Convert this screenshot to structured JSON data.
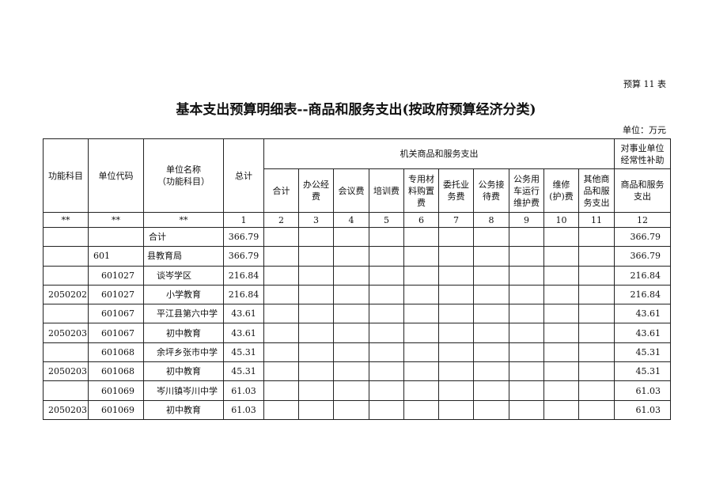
{
  "ref": "预算 11 表",
  "title": "基本支出预算明细表--商品和服务支出(按政府预算经济分类)",
  "unit": "单位：万元",
  "headers": {
    "func": "功能科目",
    "code": "单位代码",
    "name": "单位名称\n（功能科目）",
    "total": "总计",
    "group1": "机关商品和服务支出",
    "group2": "对事业单位经常性补助",
    "sub": [
      "合计",
      "办公经费",
      "会议费",
      "培训费",
      "专用材料购置费",
      "委托业务费",
      "公务接待费",
      "公务用车运行维护费",
      "维修(护)费",
      "其他商品和服务支出",
      "商品和服务支出"
    ],
    "index": [
      "**",
      "**",
      "**",
      "1",
      "2",
      "3",
      "4",
      "5",
      "6",
      "7",
      "8",
      "9",
      "10",
      "11",
      "12"
    ]
  },
  "rows": [
    {
      "func": "",
      "code": "",
      "name": "合计",
      "total": "366.79",
      "c12": "366.79",
      "level": 0
    },
    {
      "func": "",
      "code": "601",
      "name": "县教育局",
      "total": "366.79",
      "c12": "366.79",
      "level": 1
    },
    {
      "func": "",
      "code": "601027",
      "name": "谈岑学区",
      "total": "216.84",
      "c12": "216.84",
      "level": 2
    },
    {
      "func": "2050202",
      "code": "601027",
      "name": "小学教育",
      "total": "216.84",
      "c12": "216.84",
      "level": 3
    },
    {
      "func": "",
      "code": "601067",
      "name": "平江县第六中学",
      "total": "43.61",
      "c12": "43.61",
      "level": 2
    },
    {
      "func": "2050203",
      "code": "601067",
      "name": "初中教育",
      "total": "43.61",
      "c12": "43.61",
      "level": 3
    },
    {
      "func": "",
      "code": "601068",
      "name": "余坪乡张市中学",
      "total": "45.31",
      "c12": "45.31",
      "level": 2
    },
    {
      "func": "2050203",
      "code": "601068",
      "name": "初中教育",
      "total": "45.31",
      "c12": "45.31",
      "level": 3
    },
    {
      "func": "",
      "code": "601069",
      "name": "岑川镇岑川中学",
      "total": "61.03",
      "c12": "61.03",
      "level": 2
    },
    {
      "func": "2050203",
      "code": "601069",
      "name": "初中教育",
      "total": "61.03",
      "c12": "61.03",
      "level": 3
    }
  ]
}
